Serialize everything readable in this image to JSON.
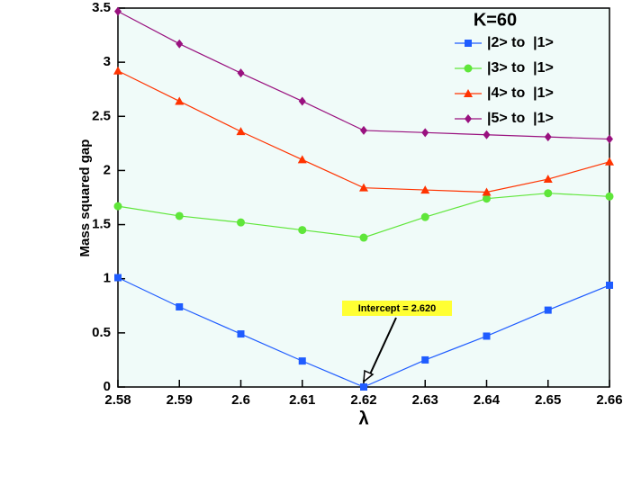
{
  "chart_data": {
    "type": "line",
    "legend_title": "K=60",
    "xlabel": "λ",
    "ylabel": "Mass squared gap",
    "annotation": "Intercept = 2.620",
    "x": [
      2.58,
      2.59,
      2.6,
      2.61,
      2.62,
      2.63,
      2.64,
      2.65,
      2.66
    ],
    "series": [
      {
        "name": "|2> to  |1>",
        "color": "#1f5cff",
        "marker": "square",
        "values": [
          1.01,
          0.74,
          0.49,
          0.24,
          0.0,
          0.25,
          0.47,
          0.71,
          0.94
        ]
      },
      {
        "name": "|3> to  |1>",
        "color": "#5fe63a",
        "marker": "circle",
        "values": [
          1.67,
          1.58,
          1.52,
          1.45,
          1.38,
          1.57,
          1.74,
          1.79,
          1.76
        ]
      },
      {
        "name": "|4> to  |1>",
        "color": "#ff3300",
        "marker": "triangle",
        "values": [
          2.92,
          2.64,
          2.36,
          2.1,
          1.84,
          1.82,
          1.8,
          1.92,
          2.08
        ]
      },
      {
        "name": "|5> to  |1>",
        "color": "#99117f",
        "marker": "diamond",
        "values": [
          3.47,
          3.17,
          2.9,
          2.64,
          2.37,
          2.35,
          2.33,
          2.31,
          2.29
        ]
      }
    ],
    "xlim": [
      2.58,
      2.66
    ],
    "xticks": [
      2.58,
      2.59,
      2.6,
      2.61,
      2.62,
      2.63,
      2.64,
      2.65,
      2.66
    ],
    "ylim": [
      0,
      3.5
    ],
    "yticks": [
      0,
      0.5,
      1,
      1.5,
      2,
      2.5,
      3,
      3.5
    ],
    "grid": false
  }
}
